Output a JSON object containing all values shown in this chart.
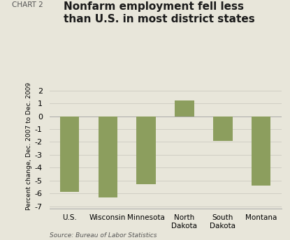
{
  "categories": [
    "U.S.",
    "Wisconsin",
    "Minnesota",
    "North\nDakota",
    "South\nDakota",
    "Montana"
  ],
  "values": [
    -5.9,
    -6.3,
    -5.3,
    1.2,
    -1.9,
    -5.4
  ],
  "bar_color": "#8c9e5e",
  "background_color": "#e8e6da",
  "grid_color": "#d0cec4",
  "title_main": "Nonfarm employment fell less\nthan U.S. in most district states",
  "chart_label": "CHART 2",
  "ylabel": "Percent change, Dec. 2007 to Dec. 2009",
  "source": "Source: Bureau of Labor Statistics",
  "ylim": [
    -7.2,
    2.5
  ],
  "yticks": [
    -7,
    -6,
    -5,
    -4,
    -3,
    -2,
    -1,
    0,
    1,
    2
  ]
}
